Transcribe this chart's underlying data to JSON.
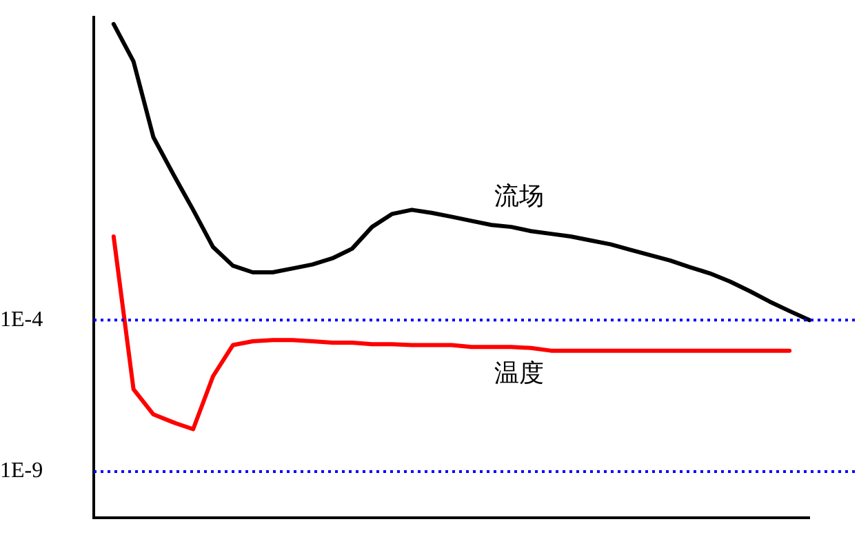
{
  "chart_data": {
    "type": "line",
    "log": "y",
    "tick_labels": "y",
    "legend": false,
    "marker": "none",
    "ylim": [
      3e-11,
      1000000.0
    ],
    "yticks": [
      {
        "value": 1e-09,
        "label": "1E-9"
      },
      {
        "value": 0.0001,
        "label": "1E-4"
      }
    ],
    "categories": [
      null,
      null,
      null,
      null,
      null,
      null,
      null,
      null,
      null,
      null,
      null,
      null,
      null,
      null,
      null,
      null,
      null,
      null,
      null,
      null,
      null,
      null,
      null,
      null,
      null,
      null,
      null,
      null,
      null,
      null,
      null,
      null,
      null,
      null,
      null,
      null,
      null
    ],
    "series": [
      {
        "name": "流场",
        "color": "#000000",
        "values": [
          null,
          600000.0,
          35000.0,
          110,
          6.6,
          0.44,
          0.026,
          0.0063,
          0.0038,
          0.0038,
          0.0051,
          0.0069,
          0.011,
          0.023,
          0.12,
          0.32,
          0.44,
          0.35,
          0.26,
          0.19,
          0.14,
          0.12,
          0.087,
          0.071,
          0.058,
          0.043,
          0.032,
          0.021,
          0.014,
          0.0093,
          0.0056,
          0.0035,
          0.0019,
          0.00091,
          0.00041,
          0.0002,
          0.0001
        ]
      },
      {
        "name": "温度",
        "color": "#ff0000",
        "values": [
          null,
          0.058,
          5.2e-07,
          7.7e-08,
          4.2e-08,
          2.5e-08,
          1.4e-06,
          1.5e-05,
          2e-05,
          2.2e-05,
          2.2e-05,
          2e-05,
          1.8e-05,
          1.8e-05,
          1.6e-05,
          1.6e-05,
          1.5e-05,
          1.5e-05,
          1.5e-05,
          1.3e-05,
          1.3e-05,
          1.3e-05,
          1.2e-05,
          9.8e-06,
          9.8e-06,
          9.8e-06,
          9.8e-06,
          9.8e-06,
          9.8e-06,
          9.8e-06,
          9.8e-06,
          9.8e-06,
          9.8e-06,
          9.8e-06,
          9.8e-06,
          9.8e-06,
          null
        ]
      }
    ],
    "ref_lines": [
      {
        "axis": "y",
        "value": 0.0001,
        "color": "#0000ff",
        "line_style": "dotted"
      },
      {
        "axis": "y",
        "value": 1e-09,
        "color": "#0000ff",
        "line_style": "dotted"
      }
    ]
  }
}
